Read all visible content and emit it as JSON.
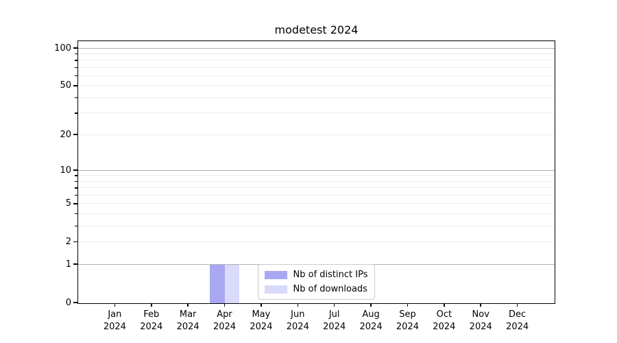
{
  "chart_data": {
    "type": "bar",
    "title": "modetest 2024",
    "xlabel": "",
    "ylabel": "",
    "yscale": "log1p",
    "ylim": [
      0,
      130
    ],
    "grid": true,
    "categories": [
      "Jan",
      "Feb",
      "Mar",
      "Apr",
      "May",
      "Jun",
      "Jul",
      "Aug",
      "Sep",
      "Oct",
      "Nov",
      "Dec"
    ],
    "category_year": "2024",
    "series": [
      {
        "name": "Nb of distinct IPs",
        "color": "#a8a8f2",
        "values": [
          0,
          0,
          0,
          1,
          0,
          0,
          0,
          0,
          0,
          0,
          0,
          0
        ]
      },
      {
        "name": "Nb of downloads",
        "color": "#dadafa",
        "values": [
          0,
          0,
          0,
          1,
          0,
          0,
          0,
          0,
          0,
          0,
          0,
          0
        ]
      }
    ],
    "y_ticks_labeled": [
      100,
      50,
      20,
      10,
      5,
      2,
      1,
      0
    ],
    "y_gridlines_major": [
      100,
      10,
      1
    ],
    "y_gridlines_minor": [
      2,
      3,
      4,
      5,
      6,
      7,
      8,
      9,
      20,
      30,
      40,
      50,
      60,
      70,
      80,
      90
    ],
    "legend_position": "lower center"
  },
  "colors": {
    "grid_major": "#b0b0b0",
    "grid_minor": "#ededed",
    "axis": "#000000",
    "background": "#ffffff"
  }
}
